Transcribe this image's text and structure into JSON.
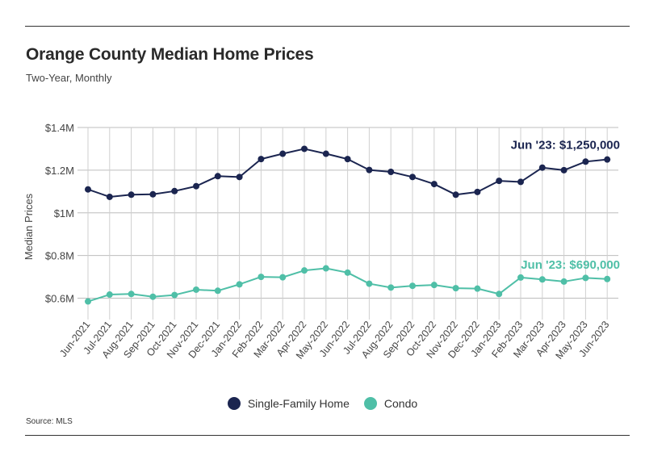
{
  "header": {
    "title": "Orange County Median Home Prices",
    "subtitle": "Two-Year, Monthly"
  },
  "source": "Source:  MLS",
  "chart_data": {
    "type": "line",
    "title": "Orange County Median Home Prices",
    "subtitle": "Two-Year, Monthly",
    "xlabel": "",
    "ylabel": "Median Prices",
    "ylim": [
      500000,
      1400000
    ],
    "yticks": [
      {
        "value": 600000,
        "label": "$0.6M"
      },
      {
        "value": 800000,
        "label": "$0.8M"
      },
      {
        "value": 1000000,
        "label": "$1M"
      },
      {
        "value": 1200000,
        "label": "$1.2M"
      },
      {
        "value": 1400000,
        "label": "$1.4M"
      }
    ],
    "grid": true,
    "legend_position": "bottom",
    "categories": [
      "Jun-2021",
      "Jul-2021",
      "Aug-2021",
      "Sep-2021",
      "Oct-2021",
      "Nov-2021",
      "Dec-2021",
      "Jan-2022",
      "Feb-2022",
      "Mar-2022",
      "Apr-2022",
      "May-2022",
      "Jun-2022",
      "Jul-2022",
      "Aug-2022",
      "Sep-2022",
      "Oct-2022",
      "Nov-2022",
      "Dec-2022",
      "Jan-2023",
      "Feb-2023",
      "Mar-2023",
      "Apr-2023",
      "May-2023",
      "Jun-2023"
    ],
    "series": [
      {
        "name": "Single-Family Home",
        "color": "#1b2550",
        "values": [
          1110000,
          1075000,
          1085000,
          1087000,
          1102000,
          1125000,
          1172000,
          1168000,
          1252000,
          1277000,
          1300000,
          1277000,
          1252000,
          1201000,
          1192000,
          1168000,
          1135000,
          1085000,
          1098000,
          1150000,
          1145000,
          1212000,
          1200000,
          1240000,
          1250000
        ]
      },
      {
        "name": "Condo",
        "color": "#4fbfa7",
        "values": [
          585000,
          617000,
          620000,
          607000,
          615000,
          640000,
          635000,
          665000,
          700000,
          698000,
          730000,
          740000,
          720000,
          668000,
          650000,
          658000,
          662000,
          647000,
          645000,
          620000,
          697000,
          688000,
          678000,
          695000,
          690000
        ]
      }
    ],
    "annotations": [
      {
        "series": 0,
        "index": 24,
        "text": "Jun '23: $1,250,000"
      },
      {
        "series": 1,
        "index": 24,
        "text": "Jun '23: $690,000"
      }
    ]
  }
}
